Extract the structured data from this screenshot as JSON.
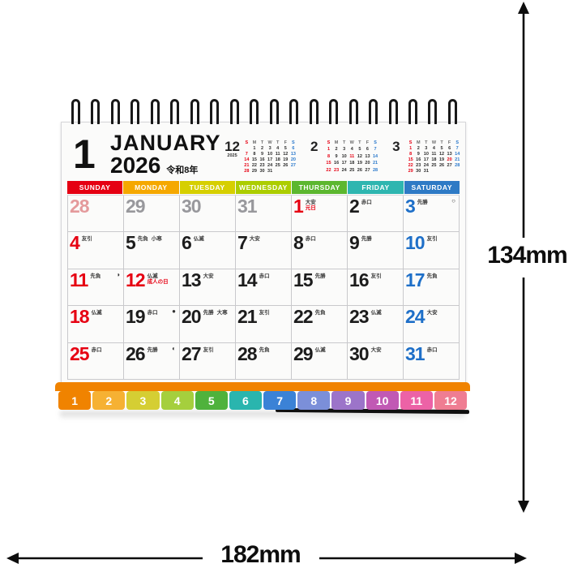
{
  "dimensions": {
    "height_label": "134mm",
    "width_label": "182mm"
  },
  "header": {
    "month_number": "1",
    "month_name": "JANUARY",
    "year": "2026",
    "era_label": "令和8年"
  },
  "mini_calendars": [
    {
      "month": "12",
      "year_label": "2025",
      "weekday_row": [
        "S:r",
        "M",
        "T",
        "W",
        "T",
        "F",
        "S:b"
      ],
      "weeks": [
        [
          "",
          "1",
          "2",
          "3",
          "4",
          "5",
          "6:b"
        ],
        [
          "7:r",
          "8",
          "9",
          "10",
          "11",
          "12",
          "13:b"
        ],
        [
          "14:r",
          "15",
          "16",
          "17",
          "18",
          "19",
          "20:b"
        ],
        [
          "21:r",
          "22",
          "23",
          "24",
          "25",
          "26",
          "27:b"
        ],
        [
          "28:r",
          "29",
          "30",
          "31",
          "",
          "",
          ""
        ]
      ]
    },
    {
      "month": "2",
      "year_label": "",
      "weekday_row": [
        "S:r",
        "M",
        "T",
        "W",
        "T",
        "F",
        "S:b"
      ],
      "weeks": [
        [
          "1:r",
          "2",
          "3",
          "4",
          "5",
          "6",
          "7:b"
        ],
        [
          "8:r",
          "9",
          "10",
          "11:r",
          "12",
          "13",
          "14:b"
        ],
        [
          "15:r",
          "16",
          "17",
          "18",
          "19",
          "20",
          "21:b"
        ],
        [
          "22:r",
          "23:r",
          "24",
          "25",
          "26",
          "27",
          "28:b"
        ]
      ]
    },
    {
      "month": "3",
      "year_label": "",
      "weekday_row": [
        "S:r",
        "M",
        "T",
        "W",
        "T",
        "F",
        "S:b"
      ],
      "weeks": [
        [
          "1:r",
          "2",
          "3",
          "4",
          "5",
          "6",
          "7:b"
        ],
        [
          "8:r",
          "9",
          "10",
          "11",
          "12",
          "13",
          "14:b"
        ],
        [
          "15:r",
          "16",
          "17",
          "18",
          "19",
          "20:r",
          "21:b"
        ],
        [
          "22:r",
          "23",
          "24",
          "25",
          "26",
          "27",
          "28:b"
        ],
        [
          "29:r",
          "30",
          "31",
          "",
          "",
          "",
          ""
        ]
      ]
    }
  ],
  "day_headers": [
    {
      "label": "SUNDAY",
      "color": "#e50012"
    },
    {
      "label": "MONDAY",
      "color": "#f5a800"
    },
    {
      "label": "TUESDAY",
      "color": "#d6cf00"
    },
    {
      "label": "WEDNESDAY",
      "color": "#accd00"
    },
    {
      "label": "THURSDAY",
      "color": "#5cb72f"
    },
    {
      "label": "FRIDAY",
      "color": "#2eb6b0"
    },
    {
      "label": "SATURDAY",
      "color": "#2e7ac5"
    }
  ],
  "weeks": [
    [
      {
        "day": "28",
        "style": "pv-sun"
      },
      {
        "day": "29",
        "style": "pv"
      },
      {
        "day": "30",
        "style": "pv"
      },
      {
        "day": "31",
        "style": "pv"
      },
      {
        "day": "1",
        "style": "sun",
        "rokuyo": "大安",
        "holiday": "元日"
      },
      {
        "day": "2",
        "style": "wk",
        "rokuyo": "赤口"
      },
      {
        "day": "3",
        "style": "sat",
        "rokuyo": "先勝",
        "moon": "full"
      }
    ],
    [
      {
        "day": "4",
        "style": "sun",
        "rokuyo": "友引"
      },
      {
        "day": "5",
        "style": "wk",
        "rokuyo": "先負",
        "sekki": "小寒"
      },
      {
        "day": "6",
        "style": "wk",
        "rokuyo": "仏滅"
      },
      {
        "day": "7",
        "style": "wk",
        "rokuyo": "大安"
      },
      {
        "day": "8",
        "style": "wk",
        "rokuyo": "赤口"
      },
      {
        "day": "9",
        "style": "wk",
        "rokuyo": "先勝"
      },
      {
        "day": "10",
        "style": "sat",
        "rokuyo": "友引"
      }
    ],
    [
      {
        "day": "11",
        "style": "sun",
        "rokuyo": "先負",
        "moon": "last"
      },
      {
        "day": "12",
        "style": "sun",
        "rokuyo": "仏滅",
        "holiday": "成人の日"
      },
      {
        "day": "13",
        "style": "wk",
        "rokuyo": "大安"
      },
      {
        "day": "14",
        "style": "wk",
        "rokuyo": "赤口"
      },
      {
        "day": "15",
        "style": "wk",
        "rokuyo": "先勝"
      },
      {
        "day": "16",
        "style": "wk",
        "rokuyo": "友引"
      },
      {
        "day": "17",
        "style": "sat",
        "rokuyo": "先負"
      }
    ],
    [
      {
        "day": "18",
        "style": "sun",
        "rokuyo": "仏滅"
      },
      {
        "day": "19",
        "style": "wk",
        "rokuyo": "赤口",
        "moon": "new"
      },
      {
        "day": "20",
        "style": "wk",
        "rokuyo": "先勝",
        "sekki": "大寒"
      },
      {
        "day": "21",
        "style": "wk",
        "rokuyo": "友引"
      },
      {
        "day": "22",
        "style": "wk",
        "rokuyo": "先負"
      },
      {
        "day": "23",
        "style": "wk",
        "rokuyo": "仏滅"
      },
      {
        "day": "24",
        "style": "sat",
        "rokuyo": "大安"
      }
    ],
    [
      {
        "day": "25",
        "style": "sun",
        "rokuyo": "赤口"
      },
      {
        "day": "26",
        "style": "wk",
        "rokuyo": "先勝",
        "moon": "first"
      },
      {
        "day": "27",
        "style": "wk",
        "rokuyo": "友引"
      },
      {
        "day": "28",
        "style": "wk",
        "rokuyo": "先負"
      },
      {
        "day": "29",
        "style": "wk",
        "rokuyo": "仏滅"
      },
      {
        "day": "30",
        "style": "wk",
        "rokuyo": "大安"
      },
      {
        "day": "31",
        "style": "sat",
        "rokuyo": "赤口"
      }
    ]
  ],
  "month_tabs": [
    {
      "label": "1",
      "color": "#f08300"
    },
    {
      "label": "2",
      "color": "#f6b133"
    },
    {
      "label": "3",
      "color": "#d5ce33"
    },
    {
      "label": "4",
      "color": "#a5cf3d"
    },
    {
      "label": "5",
      "color": "#4fb23c"
    },
    {
      "label": "6",
      "color": "#2ab5ae"
    },
    {
      "label": "7",
      "color": "#3b82d6"
    },
    {
      "label": "8",
      "color": "#7b8fd9"
    },
    {
      "label": "9",
      "color": "#9c74c9"
    },
    {
      "label": "10",
      "color": "#c159b4"
    },
    {
      "label": "11",
      "color": "#ec62a6"
    },
    {
      "label": "12",
      "color": "#ef7d92"
    }
  ],
  "stand_band_color": "#f08300"
}
